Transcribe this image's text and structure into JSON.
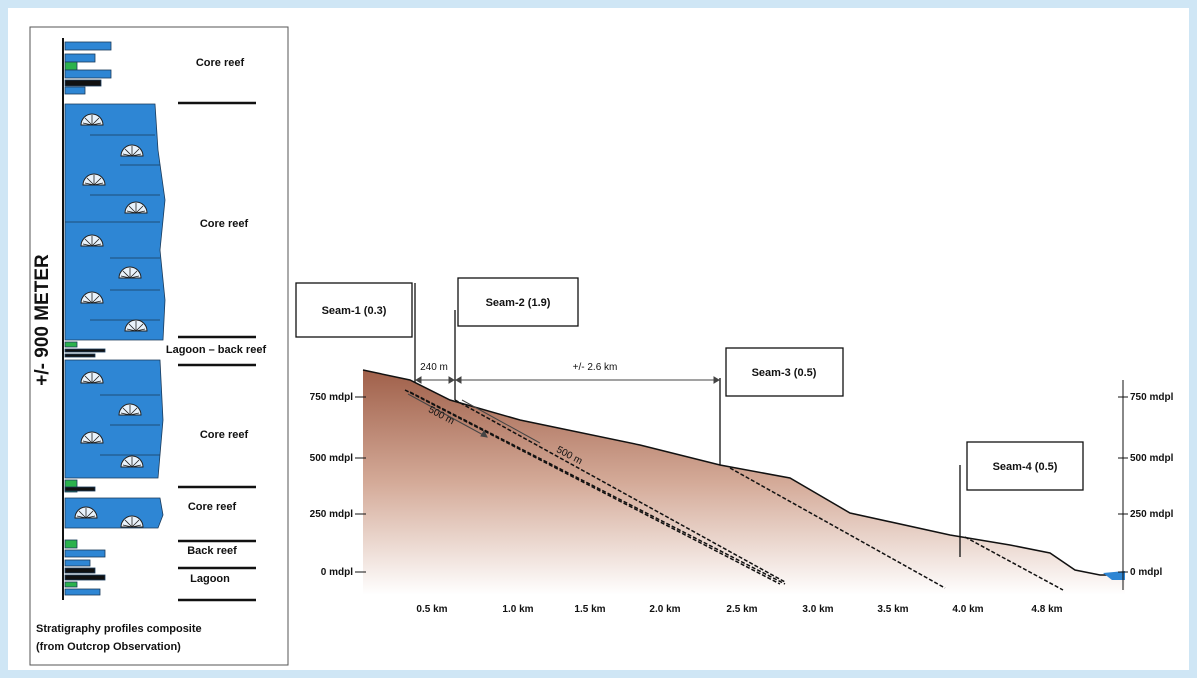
{
  "left_panel": {
    "thickness_label": "+/- 900 METER",
    "units": [
      "Core reef",
      "Core reef",
      "Lagoon – back reef",
      "Core reef",
      "Core reef",
      "Back reef",
      "Lagoon"
    ],
    "caption": [
      "Stratigraphy profiles composite",
      "(from Outcrop Observation)"
    ]
  },
  "cross_section": {
    "seams": [
      "Seam-1 (0.3)",
      "Seam-2 (1.9)",
      "Seam-3 (0.5)",
      "Seam-4 (0.5)"
    ],
    "distances": [
      "240 m",
      "+/- 2.6 km",
      "500 m",
      "500 m"
    ],
    "elevation_labels_left": [
      "750 mdpl",
      "500 mdpl",
      "250 mdpl",
      "0 mdpl"
    ],
    "elevation_labels_right": [
      "750 mdpl",
      "500 mdpl",
      "250 mdpl",
      "0 mdpl"
    ],
    "distance_labels": [
      "0.5 km",
      "1.0 km",
      "1.5 km",
      "2.0 km",
      "2.5 km",
      "3.0 km",
      "3.5 km",
      "4.0 km",
      "4.8 km"
    ]
  }
}
